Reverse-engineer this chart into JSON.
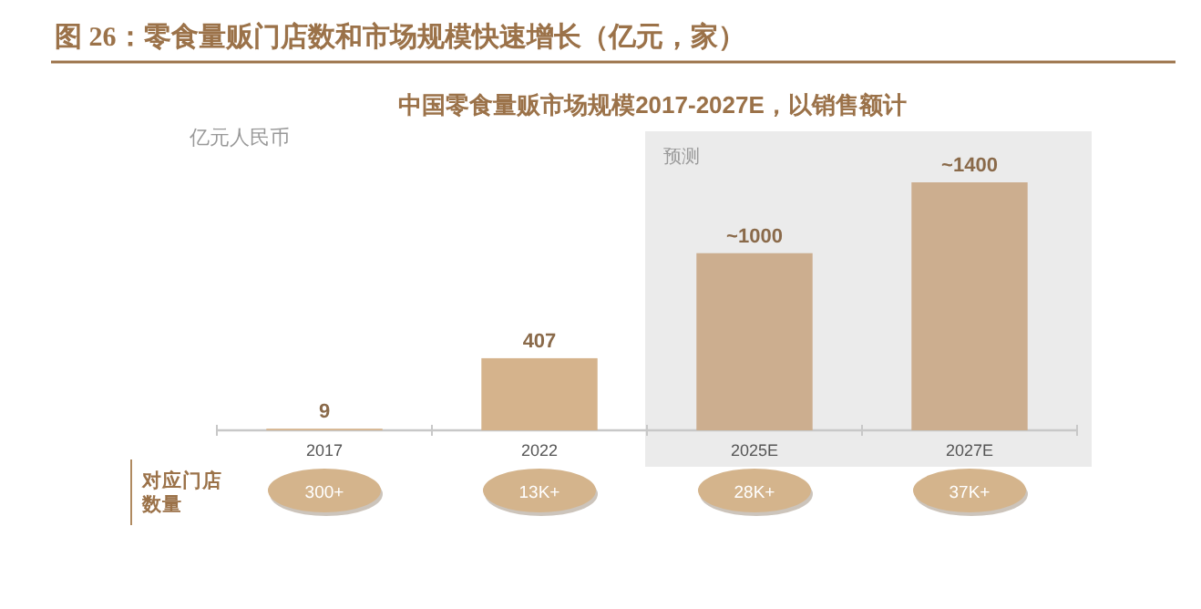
{
  "chart_data": {
    "type": "bar",
    "title": "图 26：零食量贩门店数和市场规模快速增长（亿元，家）",
    "subtitle": "中国零食量贩市场规模2017-2027E，以销售额计",
    "ylabel": "亿元人民币",
    "categories": [
      "2017",
      "2022",
      "2025E",
      "2027E"
    ],
    "values": [
      9,
      407,
      1000,
      1400
    ],
    "value_labels": [
      "9",
      "407",
      "~1000",
      "~1400"
    ],
    "colors": [
      "#d5b38c",
      "#d5b38c",
      "#ccae8f",
      "#ccae8f"
    ],
    "bands": [
      {
        "axis": "x",
        "from": "2025E",
        "to": "2027E",
        "label": "预测",
        "color": "#ebebeb"
      }
    ],
    "annotations": [
      "对应门店数量",
      "300+",
      "13K+",
      "28K+",
      "37K+"
    ]
  }
}
